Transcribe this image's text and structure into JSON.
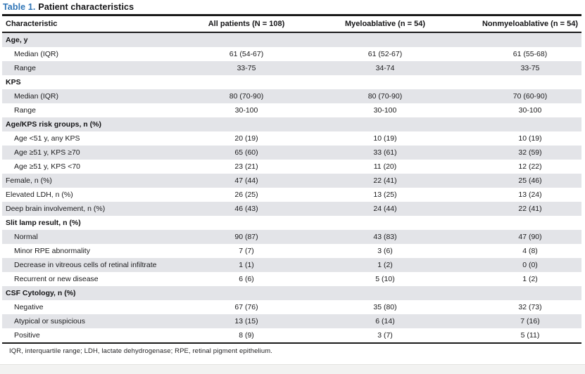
{
  "title": {
    "prefix": "Table 1.",
    "text": "Patient characteristics"
  },
  "columns": [
    "Characteristic",
    "All patients (N = 108)",
    "Myeloablative (n = 54)",
    "Nonmyeloablative (n = 54)"
  ],
  "rows": [
    {
      "label": "Age, y",
      "type": "section",
      "values": [
        "",
        "",
        ""
      ]
    },
    {
      "label": "Median (IQR)",
      "type": "sub",
      "values": [
        "61 (54-67)",
        "61 (52-67)",
        "61 (55-68)"
      ]
    },
    {
      "label": "Range",
      "type": "sub",
      "values": [
        "33-75",
        "34-74",
        "33-75"
      ]
    },
    {
      "label": "KPS",
      "type": "section",
      "values": [
        "",
        "",
        ""
      ]
    },
    {
      "label": "Median (IQR)",
      "type": "sub",
      "values": [
        "80 (70-90)",
        "80 (70-90)",
        "70 (60-90)"
      ]
    },
    {
      "label": "Range",
      "type": "sub",
      "values": [
        "30-100",
        "30-100",
        "30-100"
      ]
    },
    {
      "label": "Age/KPS risk groups, n (%)",
      "type": "section",
      "values": [
        "",
        "",
        ""
      ]
    },
    {
      "label": "Age <51 y, any KPS",
      "type": "sub",
      "values": [
        "20 (19)",
        "10 (19)",
        "10 (19)"
      ]
    },
    {
      "label": "Age ≥51 y, KPS ≥70",
      "type": "sub",
      "values": [
        "65 (60)",
        "33 (61)",
        "32 (59)"
      ]
    },
    {
      "label": "Age ≥51 y, KPS <70",
      "type": "sub",
      "values": [
        "23 (21)",
        "11 (20)",
        "12 (22)"
      ]
    },
    {
      "label": "Female, n (%)",
      "type": "plain",
      "values": [
        "47 (44)",
        "22 (41)",
        "25 (46)"
      ]
    },
    {
      "label": "Elevated LDH, n (%)",
      "type": "plain",
      "values": [
        "26 (25)",
        "13 (25)",
        "13 (24)"
      ]
    },
    {
      "label": "Deep brain involvement, n (%)",
      "type": "plain",
      "values": [
        "46 (43)",
        "24 (44)",
        "22 (41)"
      ]
    },
    {
      "label": "Slit lamp result, n (%)",
      "type": "section",
      "values": [
        "",
        "",
        ""
      ]
    },
    {
      "label": "Normal",
      "type": "sub",
      "values": [
        "90 (87)",
        "43 (83)",
        "47 (90)"
      ]
    },
    {
      "label": "Minor RPE abnormality",
      "type": "sub",
      "values": [
        "7 (7)",
        "3 (6)",
        "4 (8)"
      ]
    },
    {
      "label": "Decrease in vitreous cells of retinal infiltrate",
      "type": "sub",
      "values": [
        "1 (1)",
        "1 (2)",
        "0 (0)"
      ]
    },
    {
      "label": "Recurrent or new disease",
      "type": "sub",
      "values": [
        "6 (6)",
        "5 (10)",
        "1 (2)"
      ]
    },
    {
      "label": "CSF Cytology, n (%)",
      "type": "section",
      "values": [
        "",
        "",
        ""
      ]
    },
    {
      "label": "Negative",
      "type": "sub",
      "values": [
        "67 (76)",
        "35 (80)",
        "32 (73)"
      ]
    },
    {
      "label": "Atypical or suspicious",
      "type": "sub",
      "values": [
        "13 (15)",
        "6 (14)",
        "7 (16)"
      ]
    },
    {
      "label": "Positive",
      "type": "sub",
      "values": [
        "8 (9)",
        "3 (7)",
        "5 (11)"
      ]
    }
  ],
  "footnote": "IQR, interquartile range; LDH, lactate dehydrogenase; RPE, retinal pigment epithelium.",
  "colors": {
    "accent_blue": "#2e74b6",
    "stripe_gray": "#e3e4e8",
    "rule_black": "#1a1a1a"
  }
}
